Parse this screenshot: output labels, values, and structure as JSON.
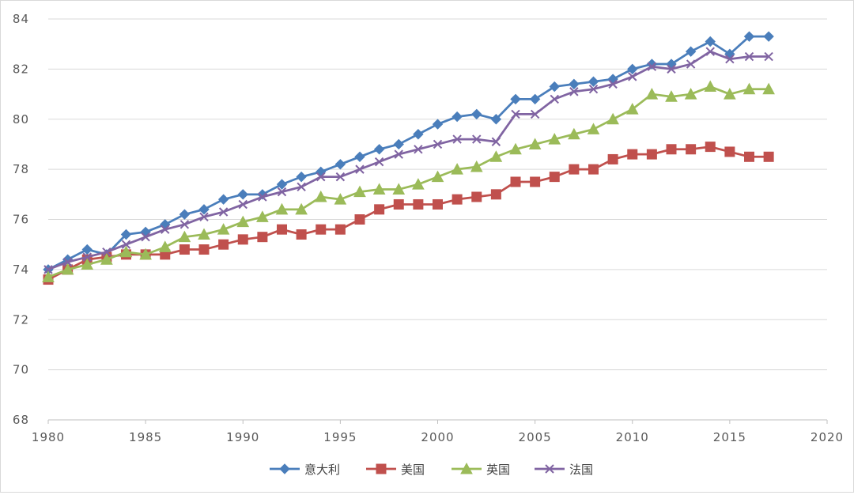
{
  "chart_data": {
    "type": "line",
    "title": "",
    "xlabel": "",
    "ylabel": "",
    "xlim": [
      1980,
      2020
    ],
    "ylim": [
      68,
      84
    ],
    "x_ticks": [
      1980,
      1985,
      1990,
      1995,
      2000,
      2005,
      2010,
      2015,
      2020
    ],
    "y_ticks": [
      68,
      70,
      72,
      74,
      76,
      78,
      80,
      82,
      84
    ],
    "grid": "horizontal",
    "legend_position": "bottom",
    "x": [
      1980,
      1981,
      1982,
      1983,
      1984,
      1985,
      1986,
      1987,
      1988,
      1989,
      1990,
      1991,
      1992,
      1993,
      1994,
      1995,
      1996,
      1997,
      1998,
      1999,
      2000,
      2001,
      2002,
      2003,
      2004,
      2005,
      2006,
      2007,
      2008,
      2009,
      2010,
      2011,
      2012,
      2013,
      2014,
      2015,
      2016,
      2017
    ],
    "series": [
      {
        "name": "意大利",
        "color": "#4a7ebb",
        "marker": "diamond",
        "values": [
          74.0,
          74.4,
          74.8,
          74.6,
          75.4,
          75.5,
          75.8,
          76.2,
          76.4,
          76.8,
          77.0,
          77.0,
          77.4,
          77.7,
          77.9,
          78.2,
          78.5,
          78.8,
          79.0,
          79.4,
          79.8,
          80.1,
          80.2,
          80.0,
          80.8,
          80.8,
          81.3,
          81.4,
          81.5,
          81.6,
          82.0,
          82.2,
          82.2,
          82.7,
          83.1,
          82.6,
          83.3,
          83.3
        ]
      },
      {
        "name": "美国",
        "color": "#c0504d",
        "marker": "square",
        "values": [
          73.6,
          74.0,
          74.4,
          74.5,
          74.6,
          74.6,
          74.6,
          74.8,
          74.8,
          75.0,
          75.2,
          75.3,
          75.6,
          75.4,
          75.6,
          75.6,
          76.0,
          76.4,
          76.6,
          76.6,
          76.6,
          76.8,
          76.9,
          77.0,
          77.5,
          77.5,
          77.7,
          78.0,
          78.0,
          78.4,
          78.6,
          78.6,
          78.8,
          78.8,
          78.9,
          78.7,
          78.5,
          78.5
        ]
      },
      {
        "name": "英国",
        "color": "#9bbb59",
        "marker": "triangle",
        "values": [
          73.7,
          74.0,
          74.2,
          74.4,
          74.7,
          74.6,
          74.9,
          75.3,
          75.4,
          75.6,
          75.9,
          76.1,
          76.4,
          76.4,
          76.9,
          76.8,
          77.1,
          77.2,
          77.2,
          77.4,
          77.7,
          78.0,
          78.1,
          78.5,
          78.8,
          79.0,
          79.2,
          79.4,
          79.6,
          80.0,
          80.4,
          81.0,
          80.9,
          81.0,
          81.3,
          81.0,
          81.2,
          81.2
        ]
      },
      {
        "name": "法国",
        "color": "#8064a2",
        "marker": "x",
        "values": [
          74.0,
          74.3,
          74.5,
          74.7,
          75.0,
          75.3,
          75.6,
          75.8,
          76.1,
          76.3,
          76.6,
          76.9,
          77.1,
          77.3,
          77.7,
          77.7,
          78.0,
          78.3,
          78.6,
          78.8,
          79.0,
          79.2,
          79.2,
          79.1,
          80.2,
          80.2,
          80.8,
          81.1,
          81.2,
          81.4,
          81.7,
          82.1,
          82.0,
          82.2,
          82.7,
          82.4,
          82.5,
          82.5
        ]
      }
    ]
  }
}
